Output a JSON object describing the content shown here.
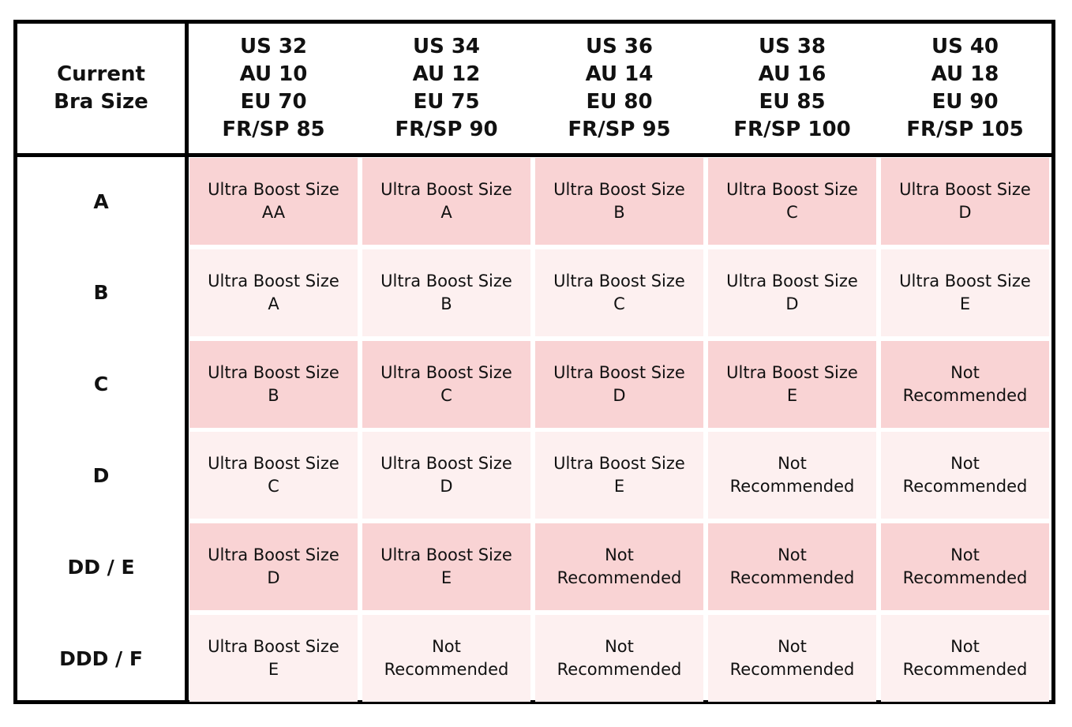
{
  "header": {
    "corner": [
      "Current",
      "Bra Size"
    ],
    "columns": [
      [
        "US 32",
        "AU 10",
        "EU 70",
        "FR/SP 85"
      ],
      [
        "US 34",
        "AU 12",
        "EU 75",
        "FR/SP 90"
      ],
      [
        "US 36",
        "AU 14",
        "EU 80",
        "FR/SP 95"
      ],
      [
        "US 38",
        "AU 16",
        "EU 85",
        "FR/SP 100"
      ],
      [
        "US 40",
        "AU 18",
        "EU 90",
        "FR/SP 105"
      ]
    ]
  },
  "rows": [
    {
      "label": "A",
      "cells": [
        [
          "Ultra Boost Size",
          "AA"
        ],
        [
          "Ultra Boost Size",
          "A"
        ],
        [
          "Ultra Boost Size",
          "B"
        ],
        [
          "Ultra Boost Size",
          "C"
        ],
        [
          "Ultra Boost Size",
          "D"
        ]
      ]
    },
    {
      "label": "B",
      "cells": [
        [
          "Ultra Boost Size",
          "A"
        ],
        [
          "Ultra Boost Size",
          "B"
        ],
        [
          "Ultra Boost Size",
          "C"
        ],
        [
          "Ultra Boost Size",
          "D"
        ],
        [
          "Ultra Boost Size",
          "E"
        ]
      ]
    },
    {
      "label": "C",
      "cells": [
        [
          "Ultra Boost Size",
          "B"
        ],
        [
          "Ultra Boost Size",
          "C"
        ],
        [
          "Ultra Boost Size",
          "D"
        ],
        [
          "Ultra Boost Size",
          "E"
        ],
        [
          "Not",
          "Recommended"
        ]
      ]
    },
    {
      "label": "D",
      "cells": [
        [
          "Ultra Boost Size",
          "C"
        ],
        [
          "Ultra Boost Size",
          "D"
        ],
        [
          "Ultra Boost Size",
          "E"
        ],
        [
          "Not",
          "Recommended"
        ],
        [
          "Not",
          "Recommended"
        ]
      ]
    },
    {
      "label": "DD / E",
      "cells": [
        [
          "Ultra Boost Size",
          "D"
        ],
        [
          "Ultra Boost Size",
          "E"
        ],
        [
          "Not",
          "Recommended"
        ],
        [
          "Not",
          "Recommended"
        ],
        [
          "Not",
          "Recommended"
        ]
      ]
    },
    {
      "label": "DDD / F",
      "cells": [
        [
          "Ultra Boost Size",
          "E"
        ],
        [
          "Not",
          "Recommended"
        ],
        [
          "Not",
          "Recommended"
        ],
        [
          "Not",
          "Recommended"
        ],
        [
          "Not",
          "Recommended"
        ]
      ]
    }
  ]
}
